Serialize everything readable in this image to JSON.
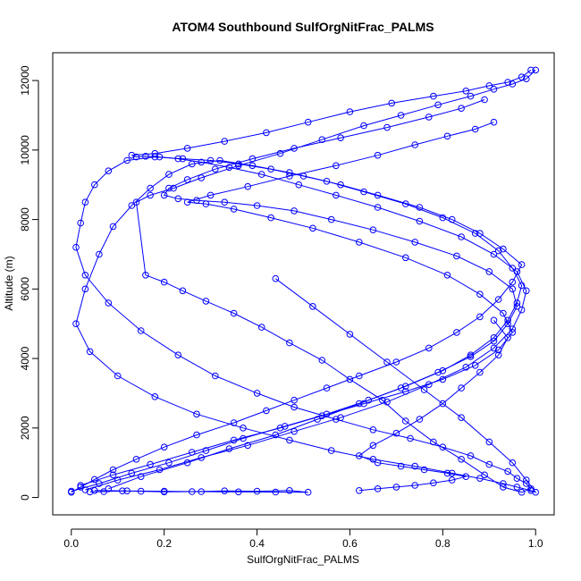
{
  "chart_data": {
    "type": "line",
    "title": "ATOM4 Southbound SulfOrgNitFrac_PALMS",
    "xlabel": "SulfOrgNitFrac_PALMS",
    "ylabel": "Altitude (m)",
    "xlim": [
      -0.04,
      1.04
    ],
    "ylim": [
      -500,
      12800
    ],
    "x_ticks": [
      0.0,
      0.2,
      0.4,
      0.6,
      0.8,
      1.0
    ],
    "x_tick_labels": [
      "0.0",
      "0.2",
      "0.4",
      "0.6",
      "0.8",
      "1.0"
    ],
    "y_ticks": [
      0,
      2000,
      4000,
      6000,
      8000,
      10000,
      12000
    ],
    "y_tick_labels": [
      "0",
      "2000",
      "4000",
      "6000",
      "8000",
      "10000",
      "12000"
    ],
    "grid": false,
    "legend": "none",
    "marker": "open-circle",
    "series_color": "#0000ff",
    "series": [
      {
        "x": [
          0.0,
          0.02,
          0.05,
          0.09,
          0.14,
          0.2,
          0.27,
          0.35,
          0.42,
          0.48,
          0.55,
          0.62,
          0.7,
          0.77,
          0.83,
          0.88,
          0.92,
          0.95,
          0.97,
          0.93,
          0.88,
          0.82,
          0.75,
          0.66,
          0.58,
          0.5,
          0.43,
          0.36,
          0.3,
          0.24,
          0.18,
          0.12,
          0.08,
          0.05,
          0.03,
          0.02,
          0.01,
          0.03,
          0.08,
          0.15,
          0.23,
          0.31,
          0.4,
          0.48,
          0.57,
          0.65,
          0.73,
          0.8,
          0.86,
          0.9,
          0.94,
          0.96,
          0.98,
          0.99,
          0.97,
          0.93,
          0.89,
          0.84,
          0.78,
          0.72,
          0.67,
          0.6,
          0.54,
          0.47,
          0.41,
          0.35,
          0.29,
          0.24,
          0.2,
          0.16,
          0.14,
          0.17,
          0.22,
          0.28,
          0.36,
          0.45,
          0.54,
          0.63,
          0.71,
          0.79,
          0.86,
          0.91,
          0.95,
          0.98,
          1.0
        ],
        "y": [
          150,
          300,
          520,
          800,
          1100,
          1450,
          1800,
          2150,
          2500,
          2800,
          3150,
          3500,
          3900,
          4300,
          4750,
          5200,
          5700,
          6200,
          6700,
          7150,
          7600,
          8000,
          8350,
          8700,
          9000,
          9250,
          9450,
          9600,
          9700,
          9750,
          9800,
          9700,
          9400,
          9000,
          8500,
          7900,
          7200,
          6400,
          5600,
          4800,
          4100,
          3500,
          3000,
          2600,
          2250,
          1950,
          1700,
          1450,
          1200,
          950,
          750,
          550,
          400,
          250,
          150,
          300,
          650,
          1100,
          1600,
          2200,
          2800,
          3400,
          3950,
          4450,
          4900,
          5300,
          5650,
          5950,
          6200,
          6400,
          8500,
          8700,
          8900,
          9200,
          9550,
          9900,
          10300,
          10700,
          11000,
          11300,
          11550,
          11750,
          11900,
          12050,
          12300
        ]
      },
      {
        "x": [
          0.0,
          0.06,
          0.13,
          0.21,
          0.29,
          0.37,
          0.46,
          0.55,
          0.64,
          0.72,
          0.8,
          0.86,
          0.91,
          0.94,
          0.96,
          0.97,
          0.95,
          0.92,
          0.87,
          0.8,
          0.72,
          0.63,
          0.55,
          0.47,
          0.39,
          0.32,
          0.26,
          0.21,
          0.17,
          0.13,
          0.09,
          0.06,
          0.03,
          0.01,
          0.04,
          0.1,
          0.18,
          0.27,
          0.37,
          0.47,
          0.56,
          0.65,
          0.74,
          0.82,
          0.88,
          0.93,
          0.96,
          0.99,
          1.0,
          0.98,
          0.95,
          0.9,
          0.84,
          0.76,
          0.68,
          0.6,
          0.52,
          0.44
        ],
        "y": [
          180,
          400,
          700,
          1000,
          1350,
          1700,
          2050,
          2400,
          2800,
          3200,
          3650,
          4100,
          4600,
          5100,
          5600,
          6100,
          6600,
          7100,
          7600,
          8050,
          8450,
          8800,
          9100,
          9350,
          9550,
          9700,
          9600,
          9300,
          8900,
          8400,
          7800,
          7000,
          6000,
          5000,
          4200,
          3500,
          2900,
          2400,
          2000,
          1650,
          1350,
          1100,
          900,
          700,
          550,
          400,
          300,
          200,
          150,
          500,
          1000,
          1600,
          2300,
          3100,
          3900,
          4700,
          5500,
          6300
        ]
      },
      {
        "x": [
          0.03,
          0.1,
          0.19,
          0.28,
          0.38,
          0.48,
          0.58,
          0.68,
          0.77,
          0.85,
          0.91,
          0.95,
          0.97,
          0.98,
          0.96,
          0.91,
          0.84,
          0.75,
          0.66,
          0.57,
          0.49,
          0.41,
          0.34,
          0.28,
          0.23,
          0.19,
          0.16,
          0.14,
          0.13,
          0.18,
          0.25,
          0.33,
          0.42,
          0.51,
          0.6,
          0.69,
          0.78,
          0.85,
          0.9,
          0.94,
          0.97,
          0.99
        ],
        "y": [
          220,
          500,
          800,
          1150,
          1500,
          1900,
          2300,
          2750,
          3250,
          3750,
          4300,
          4850,
          5400,
          5950,
          6500,
          7000,
          7500,
          7950,
          8350,
          8700,
          9000,
          9300,
          9500,
          9650,
          9750,
          9800,
          9820,
          9800,
          9850,
          9900,
          10050,
          10250,
          10500,
          10800,
          11100,
          11350,
          11550,
          11700,
          11850,
          11950,
          12100,
          12300
        ]
      },
      {
        "x": [
          0.08,
          0.15,
          0.25,
          0.34,
          0.44,
          0.53,
          0.62,
          0.71,
          0.79,
          0.86,
          0.91,
          0.94,
          0.96,
          0.95,
          0.9,
          0.83,
          0.74,
          0.65,
          0.56,
          0.48,
          0.4,
          0.33,
          0.27,
          0.23,
          0.2,
          0.21,
          0.25,
          0.31,
          0.39,
          0.48,
          0.58,
          0.68,
          0.77,
          0.84,
          0.89
        ],
        "y": [
          250,
          600,
          1000,
          1400,
          1800,
          2250,
          2700,
          3150,
          3600,
          4050,
          4500,
          5000,
          5500,
          6000,
          6500,
          6950,
          7350,
          7700,
          8000,
          8250,
          8400,
          8500,
          8550,
          8600,
          8700,
          8900,
          9150,
          9450,
          9750,
          10050,
          10350,
          10650,
          10950,
          11200,
          11450
        ]
      },
      {
        "x": [
          0.02,
          0.09,
          0.17,
          0.26,
          0.35,
          0.45,
          0.54,
          0.63,
          0.72,
          0.8,
          0.87,
          0.92,
          0.95,
          0.93,
          0.88,
          0.81,
          0.72,
          0.62,
          0.52,
          0.43,
          0.35,
          0.29,
          0.25,
          0.3,
          0.38,
          0.47,
          0.57,
          0.66,
          0.74,
          0.81,
          0.87,
          0.91
        ],
        "y": [
          350,
          650,
          950,
          1300,
          1650,
          2000,
          2350,
          2700,
          3050,
          3400,
          3800,
          4250,
          4750,
          5300,
          5850,
          6400,
          6900,
          7350,
          7750,
          8050,
          8300,
          8450,
          8500,
          8700,
          8950,
          9250,
          9550,
          9850,
          10150,
          10400,
          10600,
          10800
        ]
      },
      {
        "x": [
          0.62,
          0.66,
          0.7,
          0.74,
          0.78,
          0.82,
          0.85,
          0.81,
          0.76,
          0.71,
          0.66,
          0.62,
          0.65,
          0.7,
          0.75,
          0.8,
          0.84,
          0.88,
          0.92,
          0.94,
          0.91
        ],
        "y": [
          200,
          250,
          300,
          350,
          420,
          500,
          600,
          700,
          800,
          900,
          1000,
          1200,
          1500,
          1850,
          2250,
          2700,
          3150,
          3600,
          4100,
          4600,
          5100
        ]
      },
      {
        "x": [
          0.05,
          0.12,
          0.2,
          0.28,
          0.36,
          0.44,
          0.51,
          0.47,
          0.4,
          0.33,
          0.26,
          0.2,
          0.15,
          0.11,
          0.07,
          0.04
        ],
        "y": [
          200,
          190,
          180,
          170,
          160,
          155,
          150,
          200,
          180,
          190,
          170,
          160,
          180,
          190,
          170,
          160
        ]
      }
    ]
  }
}
